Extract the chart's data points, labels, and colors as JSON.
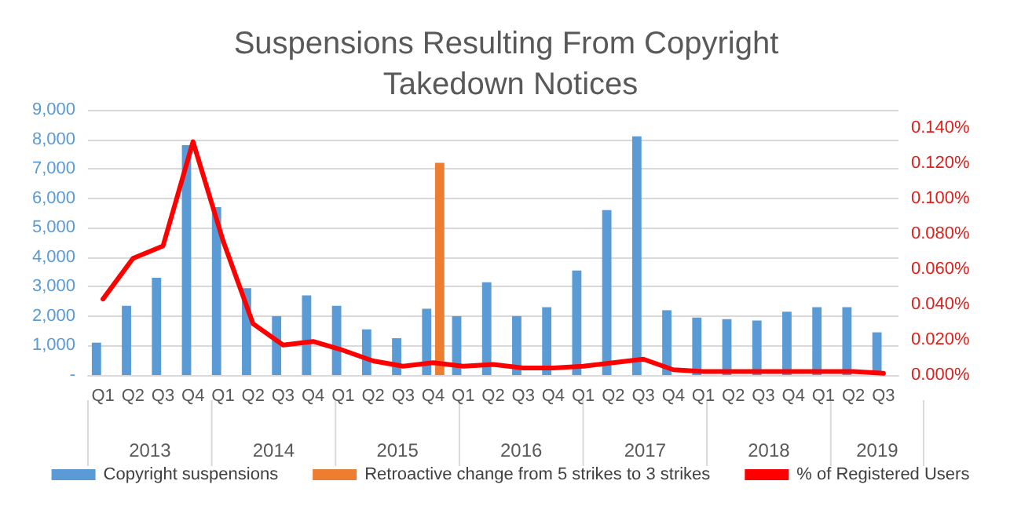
{
  "chart_data": {
    "type": "bar",
    "title": "Suspensions Resulting From Copyright Takedown Notices",
    "categories": [
      "Q1",
      "Q2",
      "Q3",
      "Q4",
      "Q1",
      "Q2",
      "Q3",
      "Q4",
      "Q1",
      "Q2",
      "Q3",
      "Q4",
      "Q1",
      "Q2",
      "Q3",
      "Q4",
      "Q1",
      "Q2",
      "Q3",
      "Q4",
      "Q1",
      "Q2",
      "Q3",
      "Q4",
      "Q1",
      "Q2",
      "Q3"
    ],
    "annotations": [
      "2013",
      "2014",
      "2015",
      "2016",
      "2017",
      "2018",
      "2019"
    ],
    "series": [
      {
        "name": "Copyright suspensions",
        "color": "#5b9bd5",
        "values": [
          1100,
          2350,
          3300,
          7800,
          5700,
          2950,
          2000,
          2700,
          2350,
          1550,
          1250,
          2250,
          2000,
          3150,
          2000,
          2300,
          3550,
          5600,
          8100,
          2200,
          1950,
          1900,
          1850,
          2150,
          2300,
          2300,
          1450
        ]
      },
      {
        "name": "Retroactive change from 5 strikes to 3 strikes",
        "color": "#ed7d31",
        "values": [
          null,
          null,
          null,
          null,
          null,
          null,
          null,
          null,
          null,
          null,
          null,
          7200,
          null,
          null,
          null,
          null,
          null,
          null,
          null,
          null,
          null,
          null,
          null,
          null,
          null,
          null,
          null
        ]
      },
      {
        "name": "% of Registered Users",
        "type": "line",
        "axis": "y2",
        "color": "#ff0000",
        "values": [
          0.043,
          0.066,
          0.073,
          0.132,
          0.076,
          0.029,
          0.017,
          0.019,
          0.014,
          0.008,
          0.005,
          0.007,
          0.005,
          0.006,
          0.004,
          0.004,
          0.005,
          0.007,
          0.009,
          0.003,
          0.002,
          0.002,
          0.002,
          0.002,
          0.002,
          0.002,
          0.001
        ]
      }
    ],
    "ylim": [
      0,
      9000
    ],
    "yticks": [
      {
        "value": 0,
        "label": "-"
      },
      {
        "value": 1000,
        "label": "1,000"
      },
      {
        "value": 2000,
        "label": "2,000"
      },
      {
        "value": 3000,
        "label": "3,000"
      },
      {
        "value": 4000,
        "label": "4,000"
      },
      {
        "value": 5000,
        "label": "5,000"
      },
      {
        "value": 6000,
        "label": "6,000"
      },
      {
        "value": 7000,
        "label": "7,000"
      },
      {
        "value": 8000,
        "label": "8,000"
      },
      {
        "value": 9000,
        "label": "9,000"
      }
    ],
    "y2lim": [
      0,
      0.15
    ],
    "y2ticks": [
      {
        "value": 0,
        "label": "0.000%"
      },
      {
        "value": 0.02,
        "label": "0.020%"
      },
      {
        "value": 0.04,
        "label": "0.040%"
      },
      {
        "value": 0.06,
        "label": "0.060%"
      },
      {
        "value": 0.08,
        "label": "0.080%"
      },
      {
        "value": 0.1,
        "label": "0.100%"
      },
      {
        "value": 0.12,
        "label": "0.120%"
      },
      {
        "value": 0.14,
        "label": "0.140%"
      }
    ],
    "grid": "y",
    "legend": "bottom",
    "line_style": "solid"
  }
}
